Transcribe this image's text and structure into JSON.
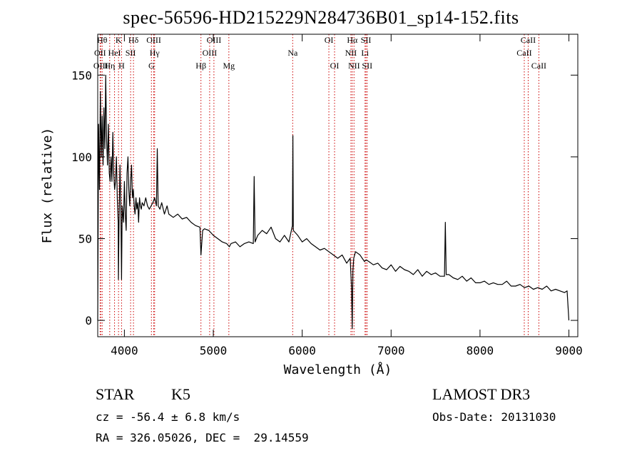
{
  "header": {
    "title": "spec-56596-HD215229N284736B01_sp14-152.fits"
  },
  "footer": {
    "class_label": "STAR",
    "subclass_label": "K5",
    "survey": "LAMOST DR3",
    "cz": "cz = -56.4 ± 6.8 km/s",
    "obs_date": "Obs-Date: 20131030",
    "coords": "RA = 326.05026, DEC =  29.14559"
  },
  "chart_data": {
    "type": "line",
    "title": "spec-56596-HD215229N284736B01_sp14-152.fits",
    "xlabel": "Wavelength (Å)",
    "ylabel": "Flux (relative)",
    "xlim": [
      3700,
      9100
    ],
    "ylim": [
      -10,
      175
    ],
    "xticks": [
      4000,
      5000,
      6000,
      7000,
      8000,
      9000
    ],
    "yticks": [
      0,
      50,
      100,
      150
    ],
    "line_color": "#000000",
    "marker_color": "#cc0000",
    "series": [
      {
        "x": [
          3700,
          3710,
          3720,
          3730,
          3740,
          3750,
          3760,
          3770,
          3780,
          3790,
          3800,
          3810,
          3820,
          3830,
          3840,
          3850,
          3860,
          3870,
          3880,
          3890,
          3900,
          3910,
          3920,
          3930,
          3933,
          3940,
          3950,
          3960,
          3968,
          3975,
          3990,
          4000,
          4010,
          4020,
          4030,
          4040,
          4050,
          4060,
          4070,
          4080,
          4090,
          4100,
          4110,
          4120,
          4130,
          4140,
          4150,
          4160,
          4170,
          4180,
          4190,
          4200,
          4220,
          4240,
          4260,
          4280,
          4300,
          4320,
          4340,
          4360,
          4370,
          4380,
          4400,
          4420,
          4450,
          4480,
          4500,
          4550,
          4600,
          4650,
          4700,
          4750,
          4800,
          4850,
          4861,
          4880,
          4900,
          4950,
          5000,
          5050,
          5100,
          5150,
          5180,
          5200,
          5250,
          5300,
          5350,
          5400,
          5450,
          5460,
          5470,
          5500,
          5550,
          5600,
          5650,
          5700,
          5750,
          5800,
          5850,
          5890,
          5895,
          5900,
          5950,
          6000,
          6050,
          6100,
          6150,
          6200,
          6250,
          6300,
          6350,
          6400,
          6450,
          6500,
          6540,
          6555,
          6563,
          6570,
          6580,
          6600,
          6650,
          6700,
          6720,
          6750,
          6800,
          6850,
          6900,
          6950,
          7000,
          7050,
          7100,
          7150,
          7200,
          7250,
          7300,
          7350,
          7400,
          7450,
          7500,
          7550,
          7600,
          7610,
          7620,
          7650,
          7700,
          7750,
          7800,
          7850,
          7900,
          7950,
          8000,
          8050,
          8100,
          8150,
          8200,
          8250,
          8300,
          8350,
          8400,
          8450,
          8500,
          8550,
          8600,
          8650,
          8700,
          8750,
          8800,
          8850,
          8900,
          8950,
          8980,
          9000
        ],
        "y": [
          0,
          120,
          80,
          140,
          100,
          125,
          95,
          130,
          105,
          150,
          110,
          95,
          120,
          90,
          85,
          100,
          85,
          115,
          90,
          80,
          85,
          100,
          75,
          60,
          25,
          60,
          95,
          70,
          25,
          70,
          60,
          85,
          65,
          55,
          90,
          100,
          80,
          70,
          85,
          95,
          75,
          80,
          70,
          65,
          75,
          68,
          72,
          60,
          75,
          70,
          68,
          72,
          70,
          75,
          70,
          68,
          70,
          72,
          75,
          70,
          105,
          70,
          68,
          72,
          65,
          70,
          65,
          63,
          65,
          62,
          63,
          60,
          58,
          57,
          40,
          55,
          56,
          55,
          52,
          50,
          48,
          47,
          45,
          47,
          48,
          45,
          47,
          48,
          47,
          88,
          48,
          52,
          55,
          53,
          57,
          50,
          48,
          52,
          48,
          58,
          113,
          55,
          52,
          48,
          50,
          47,
          45,
          43,
          44,
          42,
          40,
          38,
          40,
          35,
          38,
          20,
          -5,
          30,
          38,
          42,
          40,
          36,
          37,
          36,
          34,
          35,
          32,
          31,
          34,
          30,
          33,
          31,
          30,
          28,
          31,
          27,
          30,
          28,
          29,
          27,
          27,
          60,
          28,
          28,
          26,
          25,
          27,
          24,
          26,
          23,
          23,
          24,
          22,
          23,
          22,
          22,
          24,
          21,
          21,
          22,
          20,
          21,
          19,
          20,
          19,
          21,
          18,
          19,
          18,
          17,
          18,
          0
        ]
      }
    ],
    "line_markers": [
      {
        "label": "OII",
        "x": 3727,
        "row": 1
      },
      {
        "label": "OIII",
        "x": 3734,
        "row": 2
      },
      {
        "label": "Hθ",
        "x": 3750,
        "row": 0
      },
      {
        "label": "Hη",
        "x": 3835,
        "row": 2
      },
      {
        "label": "HeI",
        "x": 3889,
        "row": 1
      },
      {
        "label": "K",
        "x": 3934,
        "row": 0
      },
      {
        "label": "H",
        "x": 3968,
        "row": 2
      },
      {
        "label": "SII",
        "x": 4070,
        "row": 1
      },
      {
        "label": "Hδ",
        "x": 4102,
        "row": 0
      },
      {
        "label": "G",
        "x": 4304,
        "row": 2
      },
      {
        "label": "OIII",
        "x": 4330,
        "row": 0
      },
      {
        "label": "Hγ",
        "x": 4340,
        "row": 1
      },
      {
        "label": "Hβ",
        "x": 4861,
        "row": 2
      },
      {
        "label": "OIII",
        "x": 4959,
        "row": 1
      },
      {
        "label": "OIII",
        "x": 5007,
        "row": 0
      },
      {
        "label": "Mg",
        "x": 5175,
        "row": 2
      },
      {
        "label": "Na",
        "x": 5893,
        "row": 1
      },
      {
        "label": "OI",
        "x": 6300,
        "row": 0
      },
      {
        "label": "OI",
        "x": 6364,
        "row": 2
      },
      {
        "label": "NII",
        "x": 6548,
        "row": 1
      },
      {
        "label": "Hα",
        "x": 6563,
        "row": 0
      },
      {
        "label": "NII",
        "x": 6583,
        "row": 2
      },
      {
        "label": "Li",
        "x": 6707,
        "row": 1
      },
      {
        "label": "SII",
        "x": 6717,
        "row": 0
      },
      {
        "label": "SII",
        "x": 6731,
        "row": 2
      },
      {
        "label": "CaII",
        "x": 8498,
        "row": 1
      },
      {
        "label": "CaII",
        "x": 8542,
        "row": 0
      },
      {
        "label": "CaII",
        "x": 8662,
        "row": 2
      }
    ]
  }
}
